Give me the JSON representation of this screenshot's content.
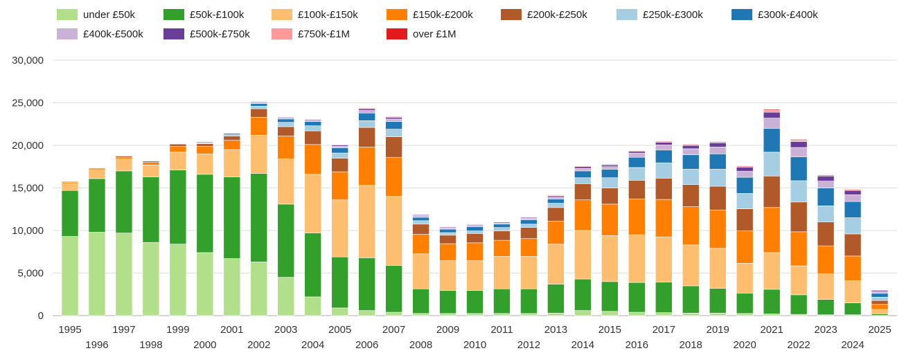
{
  "chart_data": {
    "type": "bar",
    "stacked": true,
    "categories": [
      "1995",
      "1996",
      "1997",
      "1998",
      "1999",
      "2000",
      "2001",
      "2002",
      "2003",
      "2004",
      "2005",
      "2006",
      "2007",
      "2008",
      "2009",
      "2010",
      "2011",
      "2012",
      "2013",
      "2014",
      "2015",
      "2016",
      "2017",
      "2018",
      "2019",
      "2020",
      "2021",
      "2022",
      "2023",
      "2024",
      "2025"
    ],
    "ylim": [
      0,
      30000
    ],
    "yticks": [
      0,
      5000,
      10000,
      15000,
      20000,
      25000,
      30000
    ],
    "ytick_labels": [
      "0",
      "5,000",
      "10,000",
      "15,000",
      "20,000",
      "25,000",
      "30,000"
    ],
    "title": "",
    "xlabel": "",
    "ylabel": "",
    "legend_position": "top-left",
    "grid": true,
    "series": [
      {
        "name": "under £50k",
        "color": "#b2df8a",
        "values": [
          9300,
          9800,
          9700,
          8600,
          8400,
          7400,
          6700,
          6300,
          4500,
          2200,
          900,
          600,
          400,
          250,
          250,
          250,
          250,
          250,
          300,
          600,
          500,
          400,
          350,
          300,
          300,
          250,
          200,
          150,
          100,
          100,
          20
        ]
      },
      {
        "name": "£50k-£100k",
        "color": "#33a02c",
        "values": [
          5400,
          6300,
          7300,
          7700,
          8700,
          9200,
          9600,
          10400,
          8600,
          7500,
          6000,
          6200,
          5500,
          2900,
          2700,
          2700,
          2900,
          2900,
          3400,
          3700,
          3500,
          3500,
          3600,
          3200,
          2900,
          2400,
          2900,
          2300,
          1800,
          1400,
          200
        ]
      },
      {
        "name": "£100k-£150k",
        "color": "#fdbf6f",
        "values": [
          800,
          1000,
          1400,
          1400,
          2100,
          2400,
          3200,
          4500,
          5300,
          6900,
          6700,
          8500,
          8100,
          4100,
          3500,
          3500,
          3800,
          3800,
          4700,
          5700,
          5400,
          5600,
          5300,
          4800,
          4700,
          3500,
          4300,
          3400,
          3000,
          2600,
          500
        ]
      },
      {
        "name": "£150k-£200k",
        "color": "#ff7f00",
        "values": [
          150,
          150,
          200,
          300,
          700,
          900,
          1100,
          2100,
          2700,
          3500,
          3300,
          4500,
          4600,
          2300,
          2000,
          2100,
          1900,
          2100,
          2700,
          3600,
          3700,
          4200,
          4400,
          4500,
          4500,
          3800,
          5300,
          4000,
          3300,
          2900,
          600
        ]
      },
      {
        "name": "£200k-£250k",
        "color": "#b15928",
        "values": [
          100,
          100,
          150,
          150,
          250,
          300,
          500,
          1000,
          1100,
          1600,
          1600,
          2300,
          2400,
          1200,
          1000,
          1100,
          1100,
          1300,
          1600,
          1900,
          1900,
          2200,
          2500,
          2600,
          2800,
          2600,
          3700,
          3500,
          2800,
          2600,
          450
        ]
      },
      {
        "name": "£250k-£300k",
        "color": "#a6cee3",
        "values": [
          20,
          30,
          50,
          50,
          50,
          100,
          150,
          300,
          500,
          600,
          600,
          800,
          900,
          400,
          300,
          300,
          400,
          400,
          500,
          700,
          1200,
          1500,
          1800,
          1800,
          2000,
          1800,
          2800,
          2500,
          1900,
          1900,
          400
        ]
      },
      {
        "name": "£300k-£400k",
        "color": "#1f78b4",
        "values": [
          20,
          30,
          50,
          50,
          50,
          100,
          150,
          300,
          400,
          500,
          600,
          900,
          900,
          400,
          400,
          500,
          400,
          500,
          500,
          800,
          1000,
          1200,
          1500,
          1700,
          1800,
          1900,
          2800,
          2800,
          2100,
          1900,
          450
        ]
      },
      {
        "name": "£400k-£500k",
        "color": "#cab2d6",
        "values": [
          10,
          10,
          20,
          20,
          30,
          40,
          50,
          100,
          100,
          150,
          200,
          300,
          300,
          200,
          150,
          150,
          150,
          200,
          200,
          300,
          300,
          500,
          600,
          700,
          800,
          700,
          1200,
          1100,
          800,
          800,
          200
        ]
      },
      {
        "name": "£500k-£750k",
        "color": "#6a3d9a",
        "values": [
          10,
          10,
          20,
          20,
          30,
          30,
          40,
          100,
          100,
          100,
          150,
          200,
          200,
          100,
          100,
          100,
          100,
          100,
          150,
          200,
          200,
          200,
          300,
          400,
          500,
          500,
          700,
          700,
          600,
          500,
          150
        ]
      },
      {
        "name": "£750k-£1M",
        "color": "#fb9a99",
        "values": [
          5,
          5,
          10,
          10,
          20,
          20,
          30,
          50,
          60,
          60,
          60,
          100,
          100,
          60,
          60,
          50,
          50,
          60,
          80,
          100,
          100,
          100,
          150,
          150,
          150,
          150,
          250,
          200,
          150,
          150,
          50
        ]
      },
      {
        "name": "over £1M",
        "color": "#e31a1c",
        "values": [
          5,
          5,
          5,
          5,
          10,
          10,
          10,
          20,
          20,
          20,
          20,
          40,
          40,
          20,
          20,
          20,
          20,
          20,
          30,
          30,
          30,
          30,
          40,
          50,
          50,
          50,
          100,
          80,
          50,
          50,
          10
        ]
      }
    ]
  }
}
